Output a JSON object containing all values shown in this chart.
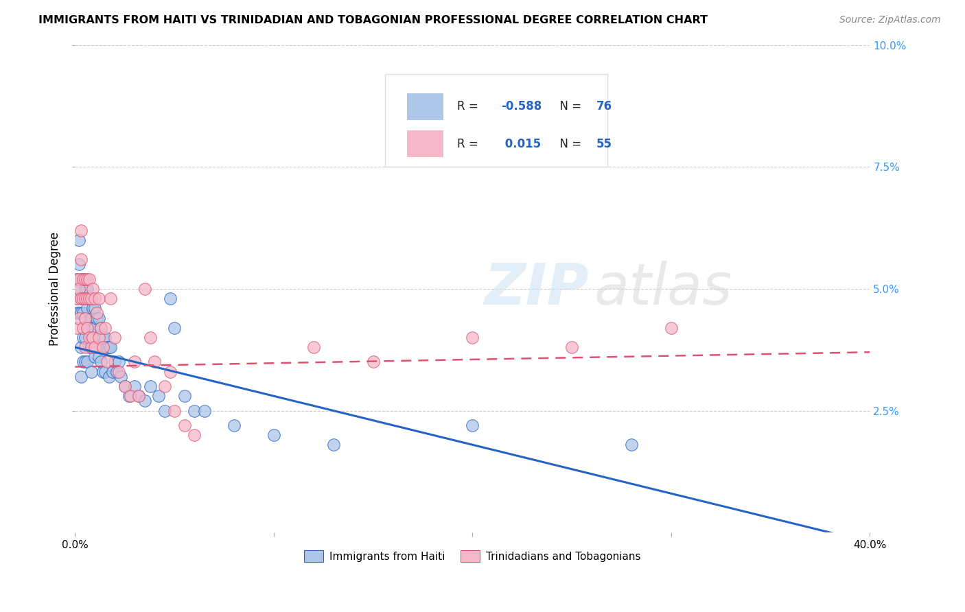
{
  "title": "IMMIGRANTS FROM HAITI VS TRINIDADIAN AND TOBAGONIAN PROFESSIONAL DEGREE CORRELATION CHART",
  "source": "Source: ZipAtlas.com",
  "ylabel": "Professional Degree",
  "xlim": [
    0.0,
    0.4
  ],
  "ylim": [
    0.0,
    0.1
  ],
  "ylabel_ticks": [
    "2.5%",
    "5.0%",
    "7.5%",
    "10.0%"
  ],
  "ylabel_tick_vals": [
    0.025,
    0.05,
    0.075,
    0.1
  ],
  "legend_haiti_label": "Immigrants from Haiti",
  "legend_tt_label": "Trinidadians and Tobagonians",
  "haiti_R": -0.588,
  "haiti_N": 76,
  "tt_R": 0.015,
  "tt_N": 55,
  "haiti_color": "#aec6e8",
  "tt_color": "#f5b8c8",
  "haiti_line_color": "#2563c4",
  "tt_line_color": "#e05070",
  "haiti_line_x0": 0.0,
  "haiti_line_y0": 0.038,
  "haiti_line_x1": 0.4,
  "haiti_line_y1": -0.002,
  "tt_line_x0": 0.0,
  "tt_line_y0": 0.034,
  "tt_line_x1": 0.4,
  "tt_line_y1": 0.037,
  "haiti_scatter_x": [
    0.001,
    0.001,
    0.001,
    0.002,
    0.002,
    0.002,
    0.002,
    0.003,
    0.003,
    0.003,
    0.003,
    0.003,
    0.004,
    0.004,
    0.004,
    0.004,
    0.004,
    0.005,
    0.005,
    0.005,
    0.005,
    0.005,
    0.006,
    0.006,
    0.006,
    0.006,
    0.007,
    0.007,
    0.007,
    0.008,
    0.008,
    0.008,
    0.008,
    0.009,
    0.009,
    0.009,
    0.01,
    0.01,
    0.01,
    0.011,
    0.011,
    0.012,
    0.012,
    0.013,
    0.013,
    0.014,
    0.014,
    0.015,
    0.015,
    0.016,
    0.017,
    0.017,
    0.018,
    0.019,
    0.02,
    0.021,
    0.022,
    0.023,
    0.025,
    0.027,
    0.03,
    0.032,
    0.035,
    0.038,
    0.042,
    0.045,
    0.048,
    0.05,
    0.055,
    0.06,
    0.065,
    0.08,
    0.1,
    0.13,
    0.2,
    0.28
  ],
  "haiti_scatter_y": [
    0.052,
    0.048,
    0.045,
    0.06,
    0.055,
    0.05,
    0.045,
    0.052,
    0.048,
    0.045,
    0.038,
    0.032,
    0.052,
    0.048,
    0.045,
    0.04,
    0.035,
    0.05,
    0.048,
    0.044,
    0.04,
    0.035,
    0.05,
    0.046,
    0.042,
    0.035,
    0.048,
    0.043,
    0.038,
    0.048,
    0.044,
    0.04,
    0.033,
    0.046,
    0.042,
    0.038,
    0.046,
    0.042,
    0.036,
    0.044,
    0.038,
    0.044,
    0.036,
    0.042,
    0.035,
    0.04,
    0.033,
    0.04,
    0.033,
    0.038,
    0.038,
    0.032,
    0.038,
    0.033,
    0.035,
    0.033,
    0.035,
    0.032,
    0.03,
    0.028,
    0.03,
    0.028,
    0.027,
    0.03,
    0.028,
    0.025,
    0.048,
    0.042,
    0.028,
    0.025,
    0.025,
    0.022,
    0.02,
    0.018,
    0.022,
    0.018
  ],
  "tt_scatter_x": [
    0.001,
    0.001,
    0.001,
    0.002,
    0.002,
    0.002,
    0.003,
    0.003,
    0.003,
    0.004,
    0.004,
    0.004,
    0.005,
    0.005,
    0.005,
    0.005,
    0.006,
    0.006,
    0.006,
    0.007,
    0.007,
    0.007,
    0.008,
    0.008,
    0.009,
    0.009,
    0.01,
    0.01,
    0.011,
    0.012,
    0.012,
    0.013,
    0.014,
    0.015,
    0.016,
    0.018,
    0.02,
    0.022,
    0.025,
    0.028,
    0.03,
    0.032,
    0.035,
    0.038,
    0.04,
    0.045,
    0.048,
    0.05,
    0.055,
    0.06,
    0.12,
    0.15,
    0.2,
    0.25,
    0.3
  ],
  "tt_scatter_y": [
    0.052,
    0.048,
    0.042,
    0.052,
    0.05,
    0.044,
    0.062,
    0.056,
    0.048,
    0.052,
    0.048,
    0.042,
    0.052,
    0.048,
    0.044,
    0.038,
    0.052,
    0.048,
    0.042,
    0.052,
    0.048,
    0.04,
    0.048,
    0.038,
    0.05,
    0.04,
    0.048,
    0.038,
    0.045,
    0.048,
    0.04,
    0.042,
    0.038,
    0.042,
    0.035,
    0.048,
    0.04,
    0.033,
    0.03,
    0.028,
    0.035,
    0.028,
    0.05,
    0.04,
    0.035,
    0.03,
    0.033,
    0.025,
    0.022,
    0.02,
    0.038,
    0.035,
    0.04,
    0.038,
    0.042
  ]
}
